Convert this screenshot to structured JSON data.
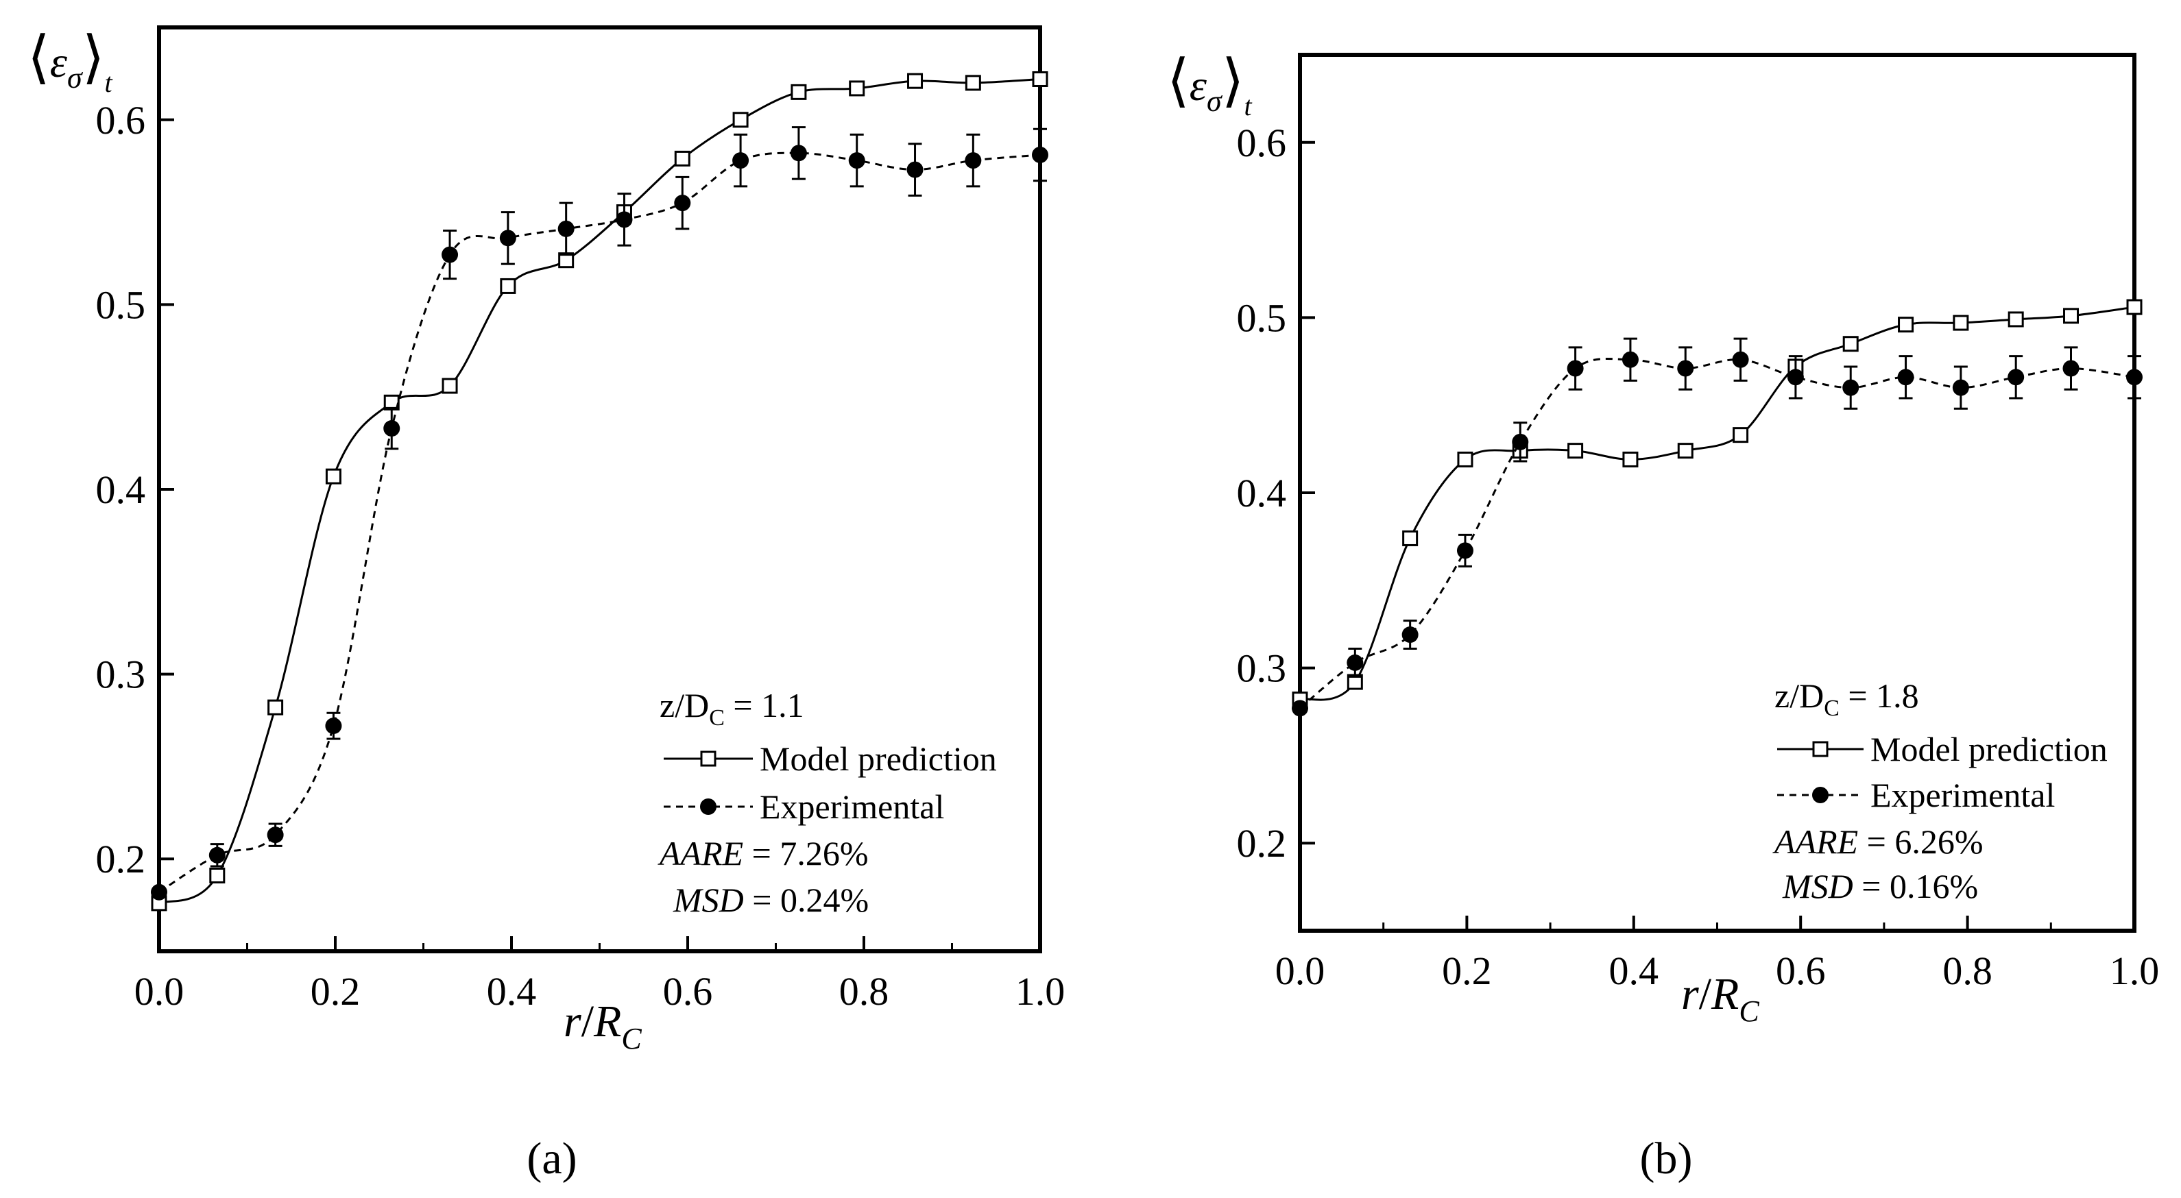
{
  "chart_data": [
    {
      "type": "line",
      "panel_label": "(a)",
      "xlabel": "r/R_C",
      "ylabel": "⟨ε_σ⟩_t",
      "xlim": [
        0.0,
        1.0
      ],
      "ylim": [
        0.15,
        0.65
      ],
      "x_ticks": [
        "0.0",
        "0.2",
        "0.4",
        "0.6",
        "0.8",
        "1.0"
      ],
      "y_ticks": [
        "0.2",
        "0.3",
        "0.4",
        "0.5",
        "0.6"
      ],
      "condition": "z/D_C = 1.1",
      "series": [
        {
          "name": "Model prediction",
          "marker": "open-square",
          "line": "solid",
          "x": [
            0.0,
            0.066,
            0.132,
            0.198,
            0.264,
            0.33,
            0.396,
            0.462,
            0.528,
            0.594,
            0.66,
            0.726,
            0.792,
            0.858,
            0.924,
            1.0
          ],
          "y": [
            0.176,
            0.191,
            0.282,
            0.407,
            0.447,
            0.456,
            0.51,
            0.524,
            0.55,
            0.579,
            0.6,
            0.615,
            0.617,
            0.621,
            0.62,
            0.622
          ]
        },
        {
          "name": "Experimental",
          "marker": "filled-circle",
          "line": "dashed",
          "x": [
            0.0,
            0.066,
            0.132,
            0.198,
            0.264,
            0.33,
            0.396,
            0.462,
            0.528,
            0.594,
            0.66,
            0.726,
            0.792,
            0.858,
            0.924,
            1.0
          ],
          "y": [
            0.182,
            0.202,
            0.213,
            0.272,
            0.433,
            0.527,
            0.536,
            0.541,
            0.546,
            0.555,
            0.578,
            0.582,
            0.578,
            0.573,
            0.578,
            0.581
          ],
          "error": [
            0.0,
            0.006,
            0.006,
            0.007,
            0.011,
            0.013,
            0.014,
            0.014,
            0.014,
            0.014,
            0.014,
            0.014,
            0.014,
            0.014,
            0.014,
            0.014
          ]
        }
      ],
      "stats": {
        "aare_label": "AARE",
        "aare_value": "= 7.26%",
        "msd_label": "MSD",
        "msd_value": "= 0.24%"
      }
    },
    {
      "type": "line",
      "panel_label": "(b)",
      "xlabel": "r/R_C",
      "ylabel": "⟨ε_σ⟩_t",
      "xlim": [
        0.0,
        1.0
      ],
      "ylim": [
        0.15,
        0.65
      ],
      "x_ticks": [
        "0.0",
        "0.2",
        "0.4",
        "0.6",
        "0.8",
        "1.0"
      ],
      "y_ticks": [
        "0.2",
        "0.3",
        "0.4",
        "0.5",
        "0.6"
      ],
      "condition": "z/D_C = 1.8",
      "series": [
        {
          "name": "Model prediction",
          "marker": "open-square",
          "line": "solid",
          "x": [
            0.0,
            0.066,
            0.132,
            0.198,
            0.264,
            0.33,
            0.396,
            0.462,
            0.528,
            0.594,
            0.66,
            0.726,
            0.792,
            0.858,
            0.924,
            1.0
          ],
          "y": [
            0.282,
            0.292,
            0.374,
            0.419,
            0.424,
            0.424,
            0.419,
            0.424,
            0.433,
            0.472,
            0.485,
            0.496,
            0.497,
            0.499,
            0.501,
            0.506
          ]
        },
        {
          "name": "Experimental",
          "marker": "filled-circle",
          "line": "dashed",
          "x": [
            0.0,
            0.066,
            0.132,
            0.198,
            0.264,
            0.33,
            0.396,
            0.462,
            0.528,
            0.594,
            0.66,
            0.726,
            0.792,
            0.858,
            0.924,
            1.0
          ],
          "y": [
            0.277,
            0.303,
            0.319,
            0.367,
            0.429,
            0.471,
            0.476,
            0.471,
            0.476,
            0.466,
            0.46,
            0.466,
            0.46,
            0.466,
            0.471,
            0.466
          ],
          "error": [
            0.0,
            0.008,
            0.008,
            0.009,
            0.011,
            0.012,
            0.012,
            0.012,
            0.012,
            0.012,
            0.012,
            0.012,
            0.012,
            0.012,
            0.012,
            0.012
          ]
        }
      ],
      "stats": {
        "aare_label": "AARE",
        "aare_value": "= 6.26%",
        "msd_label": "MSD",
        "msd_value": "= 0.16%"
      }
    }
  ]
}
